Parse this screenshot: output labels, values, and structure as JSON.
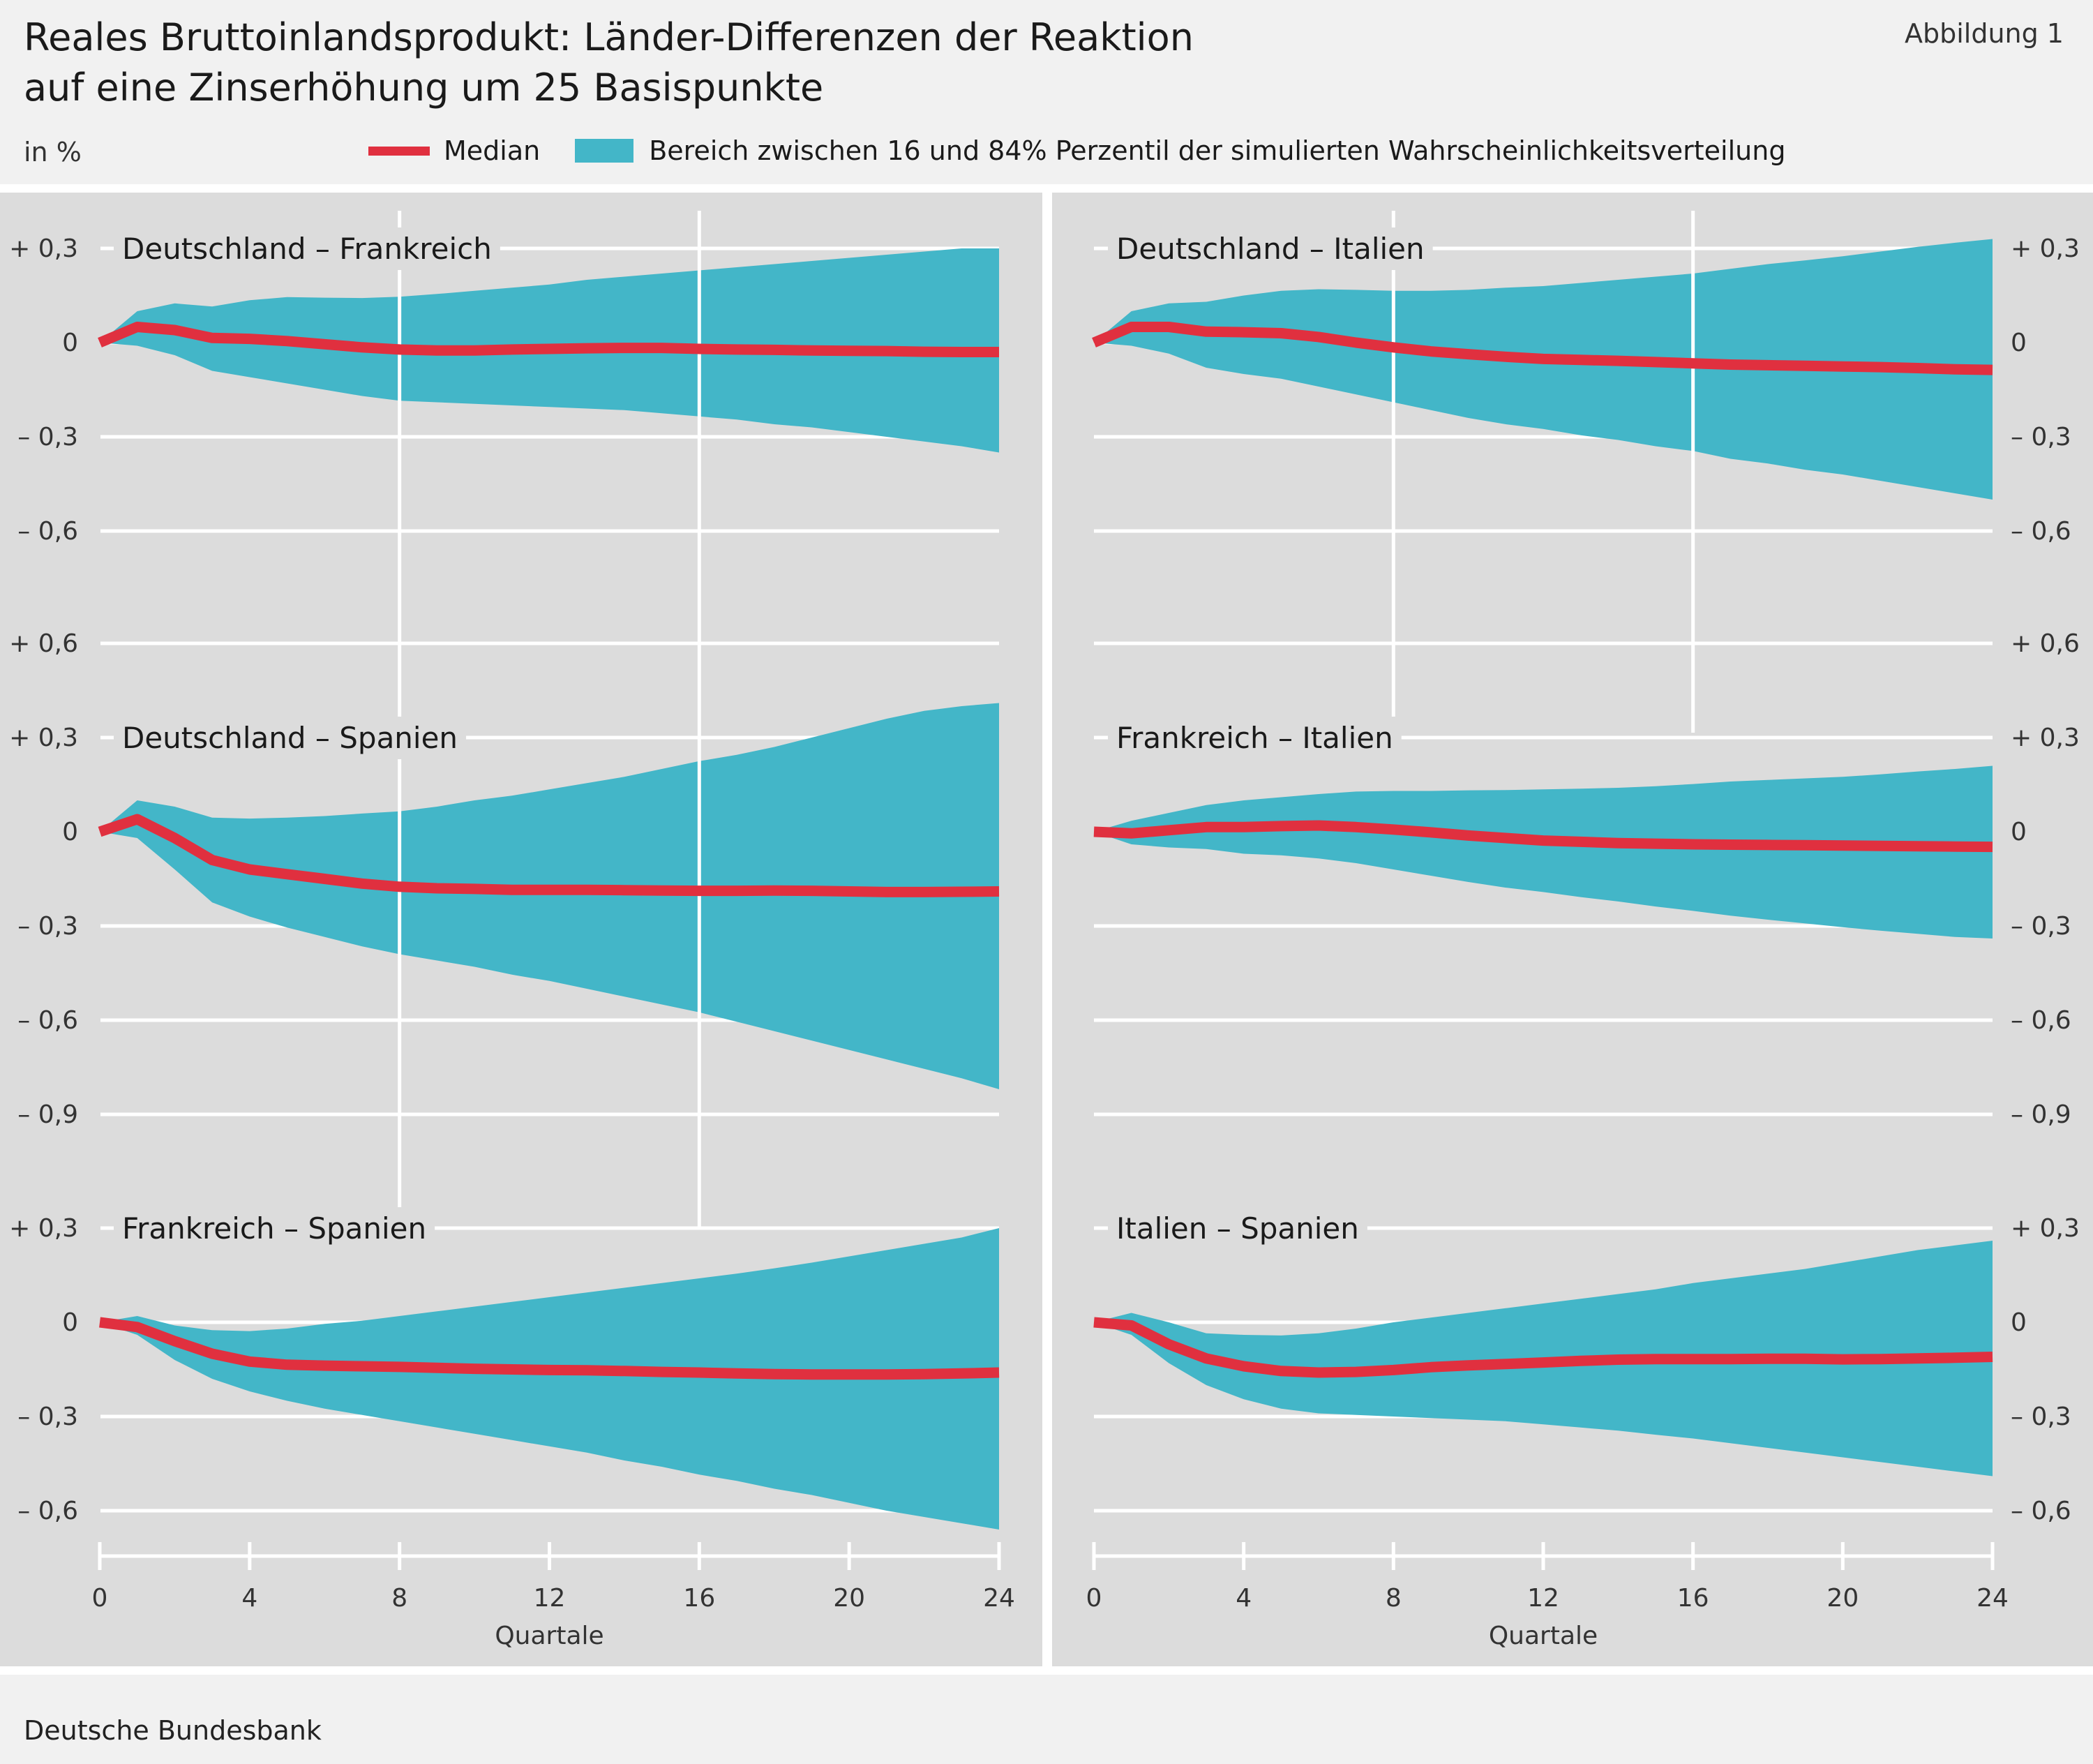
{
  "figure": {
    "title_line1": "Reales Bruttoinlandsprodukt: Länder-Differenzen der Reaktion",
    "title_line2": "auf eine Zinserhöhung um 25 Basispunkte",
    "label": "Abbildung 1",
    "unit": "in %",
    "source": "Deutsche Bundesbank",
    "legend": {
      "median": "Median",
      "band": "Bereich zwischen 16 und 84% Perzentil der simulierten Wahrscheinlichkeitsverteilung"
    },
    "colors": {
      "median": "#e0303f",
      "band": "#43b6c8",
      "background": "#dcdcdc",
      "grid": "#ffffff"
    }
  },
  "axes": {
    "x_ticks": [
      "0",
      "4",
      "8",
      "12",
      "16",
      "20",
      "24"
    ],
    "x_label": "Quartale",
    "y_tick_labels": {
      "p06": "+ 0,6",
      "p03": "+ 0,3",
      "zero": "0",
      "m03": "– 0,3",
      "m06": "– 0,6",
      "m09": "– 0,9"
    }
  },
  "chart_data": [
    {
      "type": "area",
      "title": "Deutschland – Frankreich",
      "position": "top-left",
      "x": [
        0,
        1,
        2,
        3,
        4,
        5,
        6,
        7,
        8,
        9,
        10,
        11,
        12,
        13,
        14,
        15,
        16,
        17,
        18,
        19,
        20,
        21,
        22,
        23,
        24
      ],
      "median": [
        0,
        0.05,
        0.04,
        0.015,
        0.012,
        0.005,
        -0.005,
        -0.015,
        -0.022,
        -0.025,
        -0.025,
        -0.022,
        -0.02,
        -0.018,
        -0.017,
        -0.017,
        -0.02,
        -0.022,
        -0.023,
        -0.025,
        -0.026,
        -0.027,
        -0.029,
        -0.03,
        -0.03
      ],
      "upper": [
        0,
        0.1,
        0.125,
        0.115,
        0.135,
        0.145,
        0.143,
        0.142,
        0.146,
        0.155,
        0.165,
        0.175,
        0.185,
        0.2,
        0.21,
        0.22,
        0.23,
        0.24,
        0.25,
        0.26,
        0.27,
        0.28,
        0.29,
        0.3,
        0.3
      ],
      "lower": [
        0,
        -0.01,
        -0.04,
        -0.09,
        -0.11,
        -0.13,
        -0.15,
        -0.17,
        -0.185,
        -0.19,
        -0.195,
        -0.2,
        -0.205,
        -0.21,
        -0.215,
        -0.225,
        -0.235,
        -0.245,
        -0.26,
        -0.27,
        -0.285,
        -0.3,
        -0.315,
        -0.33,
        -0.35
      ],
      "ylim": [
        -0.6,
        0.3
      ]
    },
    {
      "type": "area",
      "title": "Deutschland – Italien",
      "position": "top-right",
      "x": [
        0,
        1,
        2,
        3,
        4,
        5,
        6,
        7,
        8,
        9,
        10,
        11,
        12,
        13,
        14,
        15,
        16,
        17,
        18,
        19,
        20,
        21,
        22,
        23,
        24
      ],
      "median": [
        0,
        0.05,
        0.05,
        0.035,
        0.033,
        0.03,
        0.018,
        0.0,
        -0.015,
        -0.028,
        -0.037,
        -0.045,
        -0.052,
        -0.055,
        -0.058,
        -0.062,
        -0.066,
        -0.07,
        -0.072,
        -0.074,
        -0.076,
        -0.078,
        -0.081,
        -0.085,
        -0.087
      ],
      "upper": [
        0,
        0.1,
        0.125,
        0.13,
        0.15,
        0.165,
        0.17,
        0.168,
        0.165,
        0.165,
        0.168,
        0.175,
        0.18,
        0.19,
        0.2,
        0.21,
        0.22,
        0.235,
        0.25,
        0.262,
        0.275,
        0.29,
        0.305,
        0.318,
        0.33
      ],
      "lower": [
        0,
        -0.01,
        -0.035,
        -0.08,
        -0.1,
        -0.115,
        -0.14,
        -0.165,
        -0.19,
        -0.215,
        -0.24,
        -0.26,
        -0.275,
        -0.295,
        -0.31,
        -0.33,
        -0.345,
        -0.37,
        -0.385,
        -0.405,
        -0.42,
        -0.44,
        -0.46,
        -0.48,
        -0.5
      ],
      "ylim": [
        -0.6,
        0.3
      ]
    },
    {
      "type": "area",
      "title": "Deutschland – Spanien",
      "position": "middle-left",
      "x": [
        0,
        1,
        2,
        3,
        4,
        5,
        6,
        7,
        8,
        9,
        10,
        11,
        12,
        13,
        14,
        15,
        16,
        17,
        18,
        19,
        20,
        21,
        22,
        23,
        24
      ],
      "median": [
        0,
        0.04,
        -0.02,
        -0.09,
        -0.12,
        -0.135,
        -0.15,
        -0.165,
        -0.175,
        -0.18,
        -0.182,
        -0.185,
        -0.185,
        -0.185,
        -0.186,
        -0.187,
        -0.188,
        -0.188,
        -0.187,
        -0.188,
        -0.19,
        -0.192,
        -0.192,
        -0.191,
        -0.19
      ],
      "upper": [
        0,
        0.1,
        0.08,
        0.045,
        0.042,
        0.045,
        0.05,
        0.058,
        0.065,
        0.08,
        0.1,
        0.115,
        0.135,
        0.155,
        0.175,
        0.2,
        0.225,
        0.245,
        0.27,
        0.3,
        0.33,
        0.36,
        0.385,
        0.4,
        0.41
      ],
      "lower": [
        0,
        -0.02,
        -0.12,
        -0.225,
        -0.27,
        -0.305,
        -0.335,
        -0.365,
        -0.39,
        -0.41,
        -0.43,
        -0.455,
        -0.475,
        -0.5,
        -0.525,
        -0.55,
        -0.575,
        -0.605,
        -0.635,
        -0.665,
        -0.695,
        -0.725,
        -0.755,
        -0.785,
        -0.82
      ],
      "ylim": [
        -0.9,
        0.6
      ]
    },
    {
      "type": "area",
      "title": "Frankreich – Italien",
      "position": "middle-right",
      "x": [
        0,
        1,
        2,
        3,
        4,
        5,
        6,
        7,
        8,
        9,
        10,
        11,
        12,
        13,
        14,
        15,
        16,
        17,
        18,
        19,
        20,
        21,
        22,
        23,
        24
      ],
      "median": [
        0,
        -0.005,
        0.005,
        0.015,
        0.015,
        0.018,
        0.02,
        0.015,
        0.007,
        -0.002,
        -0.012,
        -0.02,
        -0.028,
        -0.032,
        -0.036,
        -0.038,
        -0.04,
        -0.041,
        -0.042,
        -0.043,
        -0.044,
        -0.045,
        -0.046,
        -0.047,
        -0.048
      ],
      "upper": [
        0,
        0.035,
        0.06,
        0.085,
        0.1,
        0.11,
        0.12,
        0.128,
        0.13,
        0.13,
        0.132,
        0.133,
        0.135,
        0.137,
        0.14,
        0.145,
        0.152,
        0.16,
        0.165,
        0.17,
        0.175,
        0.183,
        0.192,
        0.2,
        0.21
      ],
      "lower": [
        0,
        -0.04,
        -0.05,
        -0.055,
        -0.07,
        -0.075,
        -0.085,
        -0.1,
        -0.12,
        -0.14,
        -0.16,
        -0.178,
        -0.192,
        -0.208,
        -0.222,
        -0.238,
        -0.252,
        -0.267,
        -0.28,
        -0.292,
        -0.304,
        -0.315,
        -0.325,
        -0.335,
        -0.34
      ],
      "ylim": [
        -0.9,
        0.6
      ]
    },
    {
      "type": "area",
      "title": "Frankreich – Spanien",
      "position": "bottom-left",
      "x": [
        0,
        1,
        2,
        3,
        4,
        5,
        6,
        7,
        8,
        9,
        10,
        11,
        12,
        13,
        14,
        15,
        16,
        17,
        18,
        19,
        20,
        21,
        22,
        23,
        24
      ],
      "median": [
        0,
        -0.015,
        -0.06,
        -0.1,
        -0.125,
        -0.135,
        -0.138,
        -0.14,
        -0.142,
        -0.145,
        -0.148,
        -0.15,
        -0.152,
        -0.153,
        -0.155,
        -0.158,
        -0.16,
        -0.163,
        -0.165,
        -0.166,
        -0.166,
        -0.166,
        -0.165,
        -0.163,
        -0.16
      ],
      "upper": [
        0,
        0.02,
        -0.01,
        -0.025,
        -0.028,
        -0.02,
        -0.005,
        0.005,
        0.02,
        0.035,
        0.05,
        0.065,
        0.08,
        0.095,
        0.11,
        0.125,
        0.14,
        0.155,
        0.172,
        0.19,
        0.21,
        0.23,
        0.25,
        0.27,
        0.3
      ],
      "lower": [
        0,
        -0.04,
        -0.12,
        -0.18,
        -0.22,
        -0.25,
        -0.275,
        -0.295,
        -0.315,
        -0.335,
        -0.355,
        -0.375,
        -0.395,
        -0.415,
        -0.44,
        -0.46,
        -0.485,
        -0.505,
        -0.53,
        -0.55,
        -0.575,
        -0.6,
        -0.62,
        -0.64,
        -0.66
      ],
      "ylim": [
        -0.6,
        0.3
      ]
    },
    {
      "type": "area",
      "title": "Italien – Spanien",
      "position": "bottom-right",
      "x": [
        0,
        1,
        2,
        3,
        4,
        5,
        6,
        7,
        8,
        9,
        10,
        11,
        12,
        13,
        14,
        15,
        16,
        17,
        18,
        19,
        20,
        21,
        22,
        23,
        24
      ],
      "median": [
        0,
        -0.01,
        -0.07,
        -0.115,
        -0.14,
        -0.155,
        -0.16,
        -0.158,
        -0.152,
        -0.143,
        -0.137,
        -0.133,
        -0.128,
        -0.123,
        -0.119,
        -0.117,
        -0.117,
        -0.117,
        -0.116,
        -0.116,
        -0.118,
        -0.117,
        -0.115,
        -0.113,
        -0.11
      ],
      "upper": [
        0,
        0.03,
        0.0,
        -0.035,
        -0.04,
        -0.042,
        -0.035,
        -0.02,
        0.0,
        0.015,
        0.03,
        0.045,
        0.06,
        0.075,
        0.09,
        0.105,
        0.125,
        0.14,
        0.155,
        0.17,
        0.19,
        0.21,
        0.23,
        0.245,
        0.26
      ],
      "lower": [
        0,
        -0.04,
        -0.13,
        -0.2,
        -0.245,
        -0.275,
        -0.29,
        -0.295,
        -0.3,
        -0.305,
        -0.31,
        -0.315,
        -0.325,
        -0.335,
        -0.345,
        -0.358,
        -0.37,
        -0.385,
        -0.4,
        -0.415,
        -0.43,
        -0.445,
        -0.46,
        -0.475,
        -0.49
      ],
      "ylim": [
        -0.6,
        0.3
      ]
    }
  ]
}
